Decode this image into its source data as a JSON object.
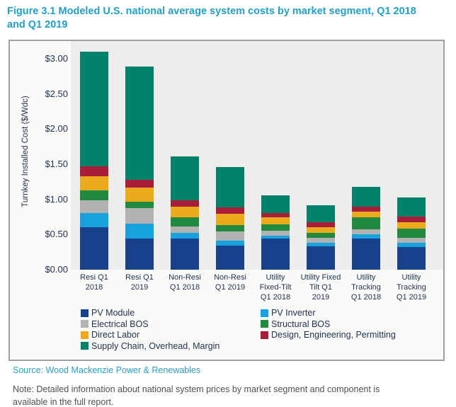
{
  "figure": {
    "title_lines": [
      "Figure 3.1 Modeled U.S. national average system costs by market segment, Q1 2018",
      "and Q1 2019"
    ]
  },
  "footer": {
    "source": "Source: Wood Mackenzie Power & Renewables",
    "note_lines": [
      "Note: Detailed information about national system prices by market segment and component is",
      "available in the full report."
    ]
  },
  "colors": {
    "title_accent": "#22a0c6",
    "axis_text": "#1f3150",
    "chart_border": "#a0a09e",
    "plot_background": "#eeedeb",
    "note_text": "#4f4f4f"
  },
  "chart_data": {
    "type": "bar",
    "stacked": true,
    "title": "",
    "xlabel": "",
    "ylabel": "Turnkey Installed Cost ($/Wdc)",
    "ylim": [
      0,
      3.0
    ],
    "ytick_step": 0.5,
    "yticks": [
      "$0.00",
      "$0.50",
      "$1.00",
      "$1.50",
      "$2.00",
      "$2.50",
      "$3.00"
    ],
    "grid": false,
    "legend_position": "bottom",
    "categories": [
      "Resi Q1 2018",
      "Resi Q1 2019",
      "Non-Resi Q1 2018",
      "Non-Resi Q1 2019",
      "Utility Fixed-Tilt Q1 2018",
      "Utility Fixed Tilt Q1 2019",
      "Utility Tracking Q1 2018",
      "Utility Tracking Q1 2019"
    ],
    "category_label_lines": [
      [
        "Resi Q1",
        "2018"
      ],
      [
        "Resi Q1",
        "2019"
      ],
      [
        "Non-Resi",
        "Q1 2018"
      ],
      [
        "Non-Resi",
        "Q1 2019"
      ],
      [
        "Utility",
        "Fixed-Tilt",
        "Q1 2018"
      ],
      [
        "Utility Fixed",
        "Tilt Q1",
        "2019"
      ],
      [
        "Utility",
        "Tracking",
        "Q1 2018"
      ],
      [
        "Utility",
        "Tracking",
        "Q1 2019"
      ]
    ],
    "series": [
      {
        "name": "PV Module",
        "color": "#17418b",
        "values": [
          0.6,
          0.44,
          0.44,
          0.34,
          0.44,
          0.33,
          0.44,
          0.32
        ]
      },
      {
        "name": "PV Inverter",
        "color": "#17a2dd",
        "values": [
          0.2,
          0.21,
          0.08,
          0.07,
          0.04,
          0.05,
          0.06,
          0.06
        ]
      },
      {
        "name": "Electrical BOS",
        "color": "#b2b2b3",
        "values": [
          0.18,
          0.22,
          0.09,
          0.13,
          0.07,
          0.07,
          0.07,
          0.07
        ]
      },
      {
        "name": "Structural BOS",
        "color": "#208b3f",
        "values": [
          0.14,
          0.09,
          0.13,
          0.09,
          0.09,
          0.07,
          0.17,
          0.13
        ]
      },
      {
        "name": "Direct Labor",
        "color": "#ecaa1d",
        "values": [
          0.2,
          0.2,
          0.15,
          0.16,
          0.1,
          0.08,
          0.08,
          0.09
        ]
      },
      {
        "name": "Design, Engineering, Permitting",
        "color": "#a81e3a",
        "values": [
          0.14,
          0.11,
          0.09,
          0.09,
          0.06,
          0.07,
          0.07,
          0.08
        ]
      },
      {
        "name": "Supply Chain, Overhead, Margin",
        "color": "#00816c",
        "values": [
          1.63,
          1.61,
          0.62,
          0.57,
          0.25,
          0.24,
          0.28,
          0.27
        ]
      }
    ],
    "totals": [
      3.09,
      2.88,
      1.6,
      1.45,
      1.05,
      0.91,
      1.17,
      1.02
    ],
    "legend_rows": [
      [
        "PV Module",
        "PV Inverter"
      ],
      [
        "Electrical BOS",
        "Structural BOS"
      ],
      [
        "Direct Labor",
        "Design, Engineering, Permitting"
      ],
      [
        "Supply Chain, Overhead, Margin"
      ]
    ]
  }
}
